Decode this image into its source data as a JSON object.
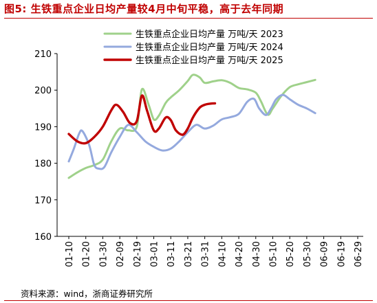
{
  "title": "图5:  生铁重点企业日均产量较4月中旬平稳，高于去年同期",
  "source": "资料来源：wind，浙商证券研究所",
  "colors": {
    "s2023": "#9fd18a",
    "s2024": "#94a9de",
    "s2025": "#c00000",
    "title": "#c00000"
  },
  "chart_data": {
    "type": "line",
    "ylim": [
      160,
      210
    ],
    "yticks": [
      160,
      170,
      180,
      190,
      200,
      210
    ],
    "categories": [
      "01-10",
      "01-20",
      "01-30",
      "02-09",
      "02-19",
      "03-01",
      "03-11",
      "03-21",
      "03-31",
      "04-10",
      "04-20",
      "04-30",
      "05-10",
      "05-20",
      "05-30",
      "06-09",
      "06-19",
      "06-29"
    ],
    "legend_position": "top",
    "series": [
      {
        "name": "生铁重点企业日均产量  万吨/天  2023",
        "points": [
          [
            0,
            176
          ],
          [
            0.5,
            177.5
          ],
          [
            1,
            178.7
          ],
          [
            1.5,
            179.5
          ],
          [
            2,
            181
          ],
          [
            2.5,
            186
          ],
          [
            3,
            189.5
          ],
          [
            3.5,
            189
          ],
          [
            4,
            190
          ],
          [
            4.3,
            200.2
          ],
          [
            4.7,
            196
          ],
          [
            5,
            192
          ],
          [
            5.3,
            193
          ],
          [
            5.7,
            196.5
          ],
          [
            6,
            198
          ],
          [
            6.5,
            200
          ],
          [
            7,
            202.5
          ],
          [
            7.3,
            204.2
          ],
          [
            7.7,
            203.5
          ],
          [
            8,
            202
          ],
          [
            8.5,
            202.4
          ],
          [
            9,
            202.7
          ],
          [
            9.5,
            202
          ],
          [
            10,
            200.6
          ],
          [
            10.5,
            200.2
          ],
          [
            11,
            199.3
          ],
          [
            11.3,
            197
          ],
          [
            11.7,
            193.3
          ],
          [
            12,
            195
          ],
          [
            12.5,
            198.4
          ],
          [
            13,
            200.8
          ],
          [
            13.5,
            201.6
          ],
          [
            14,
            202.2
          ],
          [
            14.5,
            202.8
          ]
        ]
      },
      {
        "name": "生铁重点企业日均产量  万吨/天  2024",
        "points": [
          [
            0,
            180.5
          ],
          [
            0.3,
            184
          ],
          [
            0.6,
            188
          ],
          [
            0.8,
            188.8
          ],
          [
            1.2,
            185
          ],
          [
            1.5,
            179.5
          ],
          [
            1.8,
            178.5
          ],
          [
            2.1,
            179
          ],
          [
            2.5,
            183
          ],
          [
            3,
            187.2
          ],
          [
            3.5,
            190.5
          ],
          [
            4,
            188.5
          ],
          [
            4.5,
            186
          ],
          [
            5,
            184.5
          ],
          [
            5.5,
            183.5
          ],
          [
            6,
            184
          ],
          [
            6.5,
            186
          ],
          [
            7,
            188.5
          ],
          [
            7.5,
            190.5
          ],
          [
            8,
            189.5
          ],
          [
            8.5,
            190.3
          ],
          [
            9,
            192
          ],
          [
            9.5,
            192.6
          ],
          [
            10,
            193.5
          ],
          [
            10.5,
            196.8
          ],
          [
            10.9,
            197.6
          ],
          [
            11.2,
            195
          ],
          [
            11.6,
            193.2
          ],
          [
            11.9,
            195
          ],
          [
            12.2,
            197.5
          ],
          [
            12.6,
            198.7
          ],
          [
            13,
            197.5
          ],
          [
            13.5,
            196
          ],
          [
            14,
            195
          ],
          [
            14.5,
            193.7
          ]
        ]
      },
      {
        "name": "生铁重点企业日均产量  万吨/天  2025",
        "points": [
          [
            0,
            188
          ],
          [
            0.5,
            186
          ],
          [
            1,
            185.5
          ],
          [
            1.5,
            187.2
          ],
          [
            2,
            190
          ],
          [
            2.5,
            194.5
          ],
          [
            2.8,
            196
          ],
          [
            3.2,
            194
          ],
          [
            3.6,
            191
          ],
          [
            4,
            191.5
          ],
          [
            4.3,
            198.5
          ],
          [
            4.6,
            194.5
          ],
          [
            5,
            189
          ],
          [
            5.3,
            189.5
          ],
          [
            5.7,
            192.5
          ],
          [
            6,
            191.8
          ],
          [
            6.3,
            189
          ],
          [
            6.7,
            187.8
          ],
          [
            7,
            189.5
          ],
          [
            7.3,
            192.5
          ],
          [
            7.7,
            195.2
          ],
          [
            8,
            196
          ],
          [
            8.3,
            196.3
          ],
          [
            8.6,
            196.4
          ]
        ]
      }
    ]
  }
}
